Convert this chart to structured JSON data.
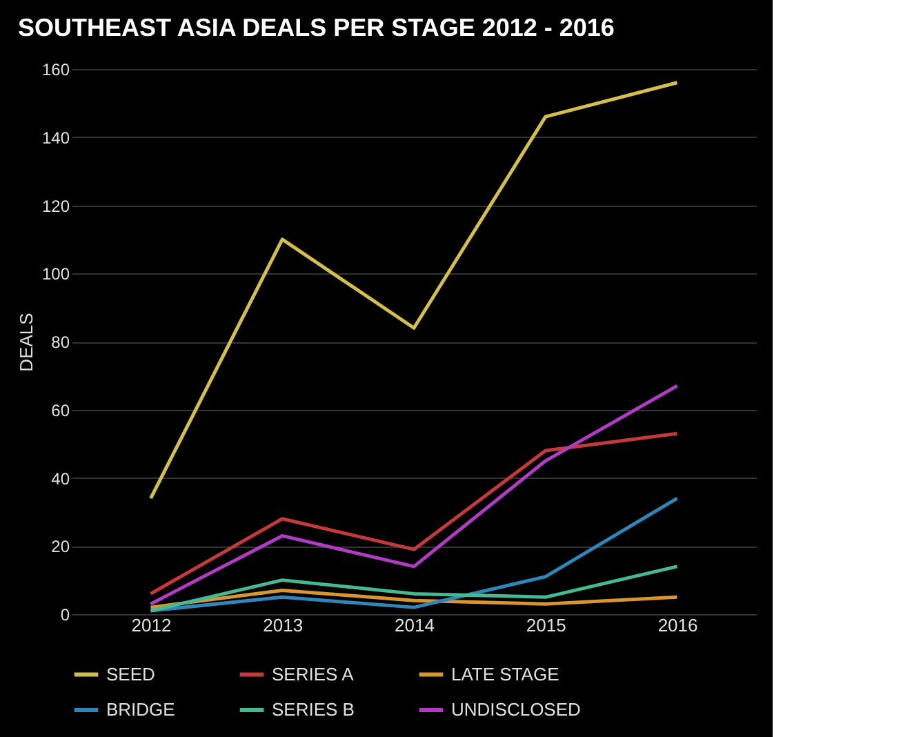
{
  "chart_data": {
    "type": "line",
    "title": "SOUTHEAST ASIA DEALS PER STAGE 2012 - 2016",
    "ylabel": "DEALS",
    "categories": [
      "2012",
      "2013",
      "2014",
      "2015",
      "2016"
    ],
    "series": [
      {
        "name": "SEED",
        "color": "#d4bf4e",
        "values": [
          34,
          110,
          84,
          146,
          156
        ]
      },
      {
        "name": "SERIES A",
        "color": "#c43a3a",
        "values": [
          6,
          28,
          19,
          48,
          53
        ]
      },
      {
        "name": "LATE STAGE",
        "color": "#d9952e",
        "values": [
          2,
          7,
          4,
          3,
          5
        ]
      },
      {
        "name": "BRIDGE",
        "color": "#2f86b8",
        "values": [
          1,
          5,
          2,
          11,
          34
        ]
      },
      {
        "name": "SERIES B",
        "color": "#45b894",
        "values": [
          1,
          10,
          6,
          5,
          14
        ]
      },
      {
        "name": "UNDISCLOSED",
        "color": "#b03cc4",
        "values": [
          3,
          23,
          14,
          45,
          67
        ]
      }
    ],
    "ylim": [
      0,
      160
    ],
    "yticks": [
      0,
      20,
      40,
      60,
      80,
      100,
      120,
      140,
      160
    ],
    "grid": "y",
    "legend": "bottom",
    "marker": "none",
    "line_style": "solid"
  }
}
